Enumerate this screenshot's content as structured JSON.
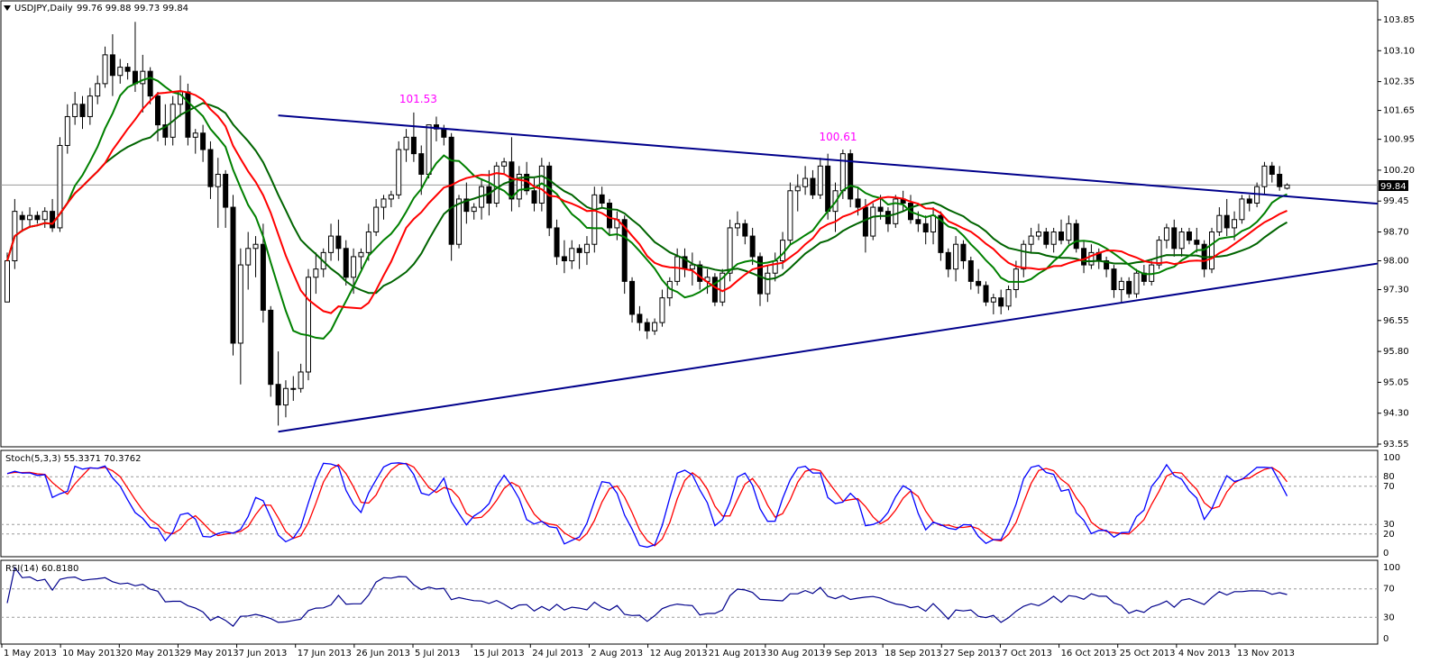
{
  "colors": {
    "background": "#ffffff",
    "candle": "#000000",
    "ma_fast": "#ff0000",
    "ma_mid": "#008000",
    "ma_slow": "#006400",
    "ma_flat": "#ffff00",
    "trendline": "#00008b",
    "annotation": "#ff00ff",
    "stoch_main": "#0000ff",
    "stoch_signal": "#ff0000",
    "rsi": "#00008b",
    "level_line": "#999999",
    "current_price_bg": "#000000",
    "current_price_text": "#ffffff"
  },
  "header": {
    "symbol_icon": "triangle-down-icon",
    "title": "USDJPY,Daily",
    "ohlc": "99.76 99.88 99.73 99.84"
  },
  "price_axis": [
    "103.85",
    "103.10",
    "102.35",
    "101.65",
    "100.95",
    "100.20",
    "99.45",
    "98.70",
    "98.00",
    "97.30",
    "96.55",
    "95.80",
    "95.05",
    "94.30",
    "93.55"
  ],
  "current_price": "99.84",
  "annotations": [
    "101.53",
    "100.61"
  ],
  "stoch": {
    "title": "Stoch(5,3,3) 55.3371 70.3762",
    "axis": [
      "100",
      "80",
      "70",
      "30",
      "20",
      "0"
    ]
  },
  "rsi": {
    "title": "RSI(14) 60.8180",
    "axis": [
      "100",
      "70",
      "30",
      "0"
    ]
  },
  "date_axis": [
    "1 May 2013",
    "10 May 2013",
    "20 May 2013",
    "29 May 2013",
    "7 Jun 2013",
    "17 Jun 2013",
    "26 Jun 2013",
    "5 Jul 2013",
    "15 Jul 2013",
    "24 Jul 2013",
    "2 Aug 2013",
    "12 Aug 2013",
    "21 Aug 2013",
    "30 Aug 2013",
    "9 Sep 2013",
    "18 Sep 2013",
    "27 Sep 2013",
    "7 Oct 2013",
    "16 Oct 2013",
    "25 Oct 2013",
    "4 Nov 2013",
    "13 Nov 2013"
  ],
  "chart_data": {
    "type": "candlestick",
    "symbol": "USDJPY",
    "timeframe": "Daily",
    "ylim": [
      93.55,
      103.85
    ],
    "candles": [
      [
        97.0,
        98.2,
        97.0,
        98.0
      ],
      [
        98.0,
        99.5,
        97.8,
        99.2
      ],
      [
        99.1,
        99.2,
        98.7,
        99.0
      ],
      [
        99.0,
        99.3,
        98.8,
        99.1
      ],
      [
        99.1,
        99.2,
        98.9,
        99.0
      ],
      [
        99.0,
        99.3,
        98.8,
        99.2
      ],
      [
        99.2,
        99.5,
        98.7,
        98.8
      ],
      [
        98.8,
        101.0,
        98.7,
        100.8
      ],
      [
        100.8,
        101.8,
        100.6,
        101.5
      ],
      [
        101.5,
        102.1,
        101.3,
        101.8
      ],
      [
        101.8,
        102.0,
        101.2,
        101.5
      ],
      [
        101.5,
        102.2,
        101.3,
        102.0
      ],
      [
        102.0,
        102.5,
        101.8,
        102.3
      ],
      [
        102.3,
        103.2,
        102.2,
        103.0
      ],
      [
        103.0,
        103.5,
        102.0,
        102.5
      ],
      [
        102.5,
        102.9,
        102.3,
        102.7
      ],
      [
        102.7,
        102.8,
        102.4,
        102.6
      ],
      [
        102.6,
        103.8,
        102.1,
        102.3
      ],
      [
        102.3,
        103.0,
        101.6,
        102.6
      ],
      [
        102.6,
        102.7,
        101.8,
        102.0
      ],
      [
        102.0,
        102.1,
        100.9,
        101.3
      ],
      [
        101.3,
        101.8,
        100.8,
        101.0
      ],
      [
        101.0,
        102.0,
        100.8,
        101.8
      ],
      [
        101.8,
        102.5,
        101.5,
        102.1
      ],
      [
        102.1,
        102.3,
        100.8,
        101.0
      ],
      [
        101.0,
        101.2,
        100.6,
        101.1
      ],
      [
        101.1,
        101.3,
        100.4,
        100.7
      ],
      [
        100.7,
        100.9,
        99.5,
        99.8
      ],
      [
        99.8,
        100.5,
        98.8,
        100.1
      ],
      [
        100.1,
        100.2,
        98.8,
        99.3
      ],
      [
        99.3,
        99.6,
        95.7,
        96.0
      ],
      [
        96.0,
        98.3,
        95.0,
        97.9
      ],
      [
        97.9,
        98.7,
        97.3,
        98.3
      ],
      [
        98.3,
        98.6,
        97.6,
        98.4
      ],
      [
        98.4,
        98.9,
        96.5,
        96.8
      ],
      [
        96.8,
        96.9,
        94.7,
        95.0
      ],
      [
        95.0,
        95.8,
        94.0,
        94.5
      ],
      [
        94.5,
        95.1,
        94.2,
        94.9
      ],
      [
        94.9,
        95.2,
        94.6,
        94.9
      ],
      [
        94.9,
        95.5,
        94.8,
        95.3
      ],
      [
        95.3,
        97.8,
        95.1,
        97.6
      ],
      [
        97.6,
        98.2,
        97.2,
        97.8
      ],
      [
        97.8,
        98.3,
        97.6,
        98.2
      ],
      [
        98.2,
        98.9,
        98.0,
        98.6
      ],
      [
        98.6,
        99.0,
        98.0,
        98.3
      ],
      [
        98.3,
        98.5,
        97.4,
        97.6
      ],
      [
        97.6,
        98.3,
        97.2,
        98.1
      ],
      [
        98.1,
        98.3,
        97.8,
        98.2
      ],
      [
        98.2,
        98.9,
        98.0,
        98.7
      ],
      [
        98.7,
        99.5,
        98.6,
        99.3
      ],
      [
        99.3,
        99.6,
        99.0,
        99.5
      ],
      [
        99.5,
        99.7,
        99.3,
        99.6
      ],
      [
        99.6,
        100.9,
        99.5,
        100.7
      ],
      [
        100.7,
        101.2,
        100.4,
        101.0
      ],
      [
        101.0,
        101.6,
        100.4,
        100.6
      ],
      [
        100.6,
        100.8,
        99.6,
        100.1
      ],
      [
        100.1,
        101.3,
        100.0,
        101.3
      ],
      [
        101.3,
        101.5,
        100.9,
        101.2
      ],
      [
        101.2,
        101.3,
        100.8,
        101.0
      ],
      [
        101.0,
        101.1,
        98.0,
        98.4
      ],
      [
        98.4,
        99.6,
        98.3,
        99.5
      ],
      [
        99.5,
        99.9,
        98.9,
        99.2
      ],
      [
        99.2,
        99.4,
        99.0,
        99.3
      ],
      [
        99.3,
        100.0,
        99.0,
        99.8
      ],
      [
        99.8,
        100.2,
        99.1,
        99.4
      ],
      [
        99.4,
        100.4,
        99.3,
        100.3
      ],
      [
        100.3,
        100.5,
        100.1,
        100.4
      ],
      [
        100.4,
        101.0,
        99.2,
        99.5
      ],
      [
        99.5,
        100.3,
        99.3,
        100.1
      ],
      [
        100.1,
        100.4,
        99.6,
        99.7
      ],
      [
        99.7,
        100.0,
        99.2,
        99.4
      ],
      [
        99.4,
        100.5,
        99.2,
        100.3
      ],
      [
        100.3,
        100.4,
        98.6,
        98.8
      ],
      [
        98.8,
        99.0,
        97.9,
        98.1
      ],
      [
        98.1,
        98.5,
        97.7,
        98.0
      ],
      [
        98.0,
        98.5,
        97.8,
        98.3
      ],
      [
        98.3,
        98.4,
        97.8,
        98.2
      ],
      [
        98.2,
        98.6,
        97.9,
        98.4
      ],
      [
        98.4,
        99.8,
        98.2,
        99.6
      ],
      [
        99.6,
        99.8,
        99.3,
        99.4
      ],
      [
        99.4,
        99.5,
        98.6,
        98.8
      ],
      [
        98.8,
        99.2,
        98.5,
        99.0
      ],
      [
        99.0,
        99.1,
        97.2,
        97.5
      ],
      [
        97.5,
        97.6,
        96.5,
        96.7
      ],
      [
        96.7,
        96.9,
        96.3,
        96.5
      ],
      [
        96.5,
        96.6,
        96.1,
        96.3
      ],
      [
        96.3,
        96.6,
        96.2,
        96.5
      ],
      [
        96.5,
        97.3,
        96.4,
        97.1
      ],
      [
        97.1,
        97.6,
        96.9,
        97.5
      ],
      [
        97.5,
        98.3,
        97.4,
        98.1
      ],
      [
        98.1,
        98.3,
        97.6,
        97.8
      ],
      [
        97.8,
        98.2,
        97.4,
        97.9
      ],
      [
        97.9,
        98.0,
        97.3,
        97.5
      ],
      [
        97.5,
        97.8,
        97.2,
        97.6
      ],
      [
        97.6,
        97.7,
        96.9,
        97.0
      ],
      [
        97.0,
        97.8,
        96.9,
        97.7
      ],
      [
        97.7,
        99.0,
        97.5,
        98.8
      ],
      [
        98.8,
        99.2,
        98.6,
        98.9
      ],
      [
        98.9,
        99.0,
        98.4,
        98.6
      ],
      [
        98.6,
        98.8,
        97.9,
        98.1
      ],
      [
        98.1,
        98.2,
        96.9,
        97.2
      ],
      [
        97.2,
        97.9,
        97.0,
        97.7
      ],
      [
        97.7,
        98.2,
        97.5,
        98.0
      ],
      [
        98.0,
        98.7,
        97.8,
        98.5
      ],
      [
        98.5,
        99.9,
        98.4,
        99.7
      ],
      [
        99.7,
        100.1,
        99.2,
        99.8
      ],
      [
        99.8,
        100.3,
        99.6,
        100.0
      ],
      [
        100.0,
        100.2,
        99.5,
        99.6
      ],
      [
        99.6,
        100.5,
        99.5,
        100.3
      ],
      [
        100.3,
        100.6,
        99.0,
        99.2
      ],
      [
        99.2,
        99.9,
        98.7,
        99.7
      ],
      [
        99.7,
        100.7,
        99.5,
        100.6
      ],
      [
        100.6,
        100.7,
        99.3,
        99.5
      ],
      [
        99.5,
        99.8,
        99.1,
        99.3
      ],
      [
        99.3,
        99.5,
        98.2,
        98.6
      ],
      [
        98.6,
        99.4,
        98.5,
        99.3
      ],
      [
        99.3,
        99.6,
        99.0,
        99.2
      ],
      [
        99.2,
        99.3,
        98.7,
        98.9
      ],
      [
        98.9,
        99.6,
        98.8,
        99.5
      ],
      [
        99.5,
        99.7,
        99.2,
        99.4
      ],
      [
        99.4,
        99.6,
        98.9,
        99.0
      ],
      [
        99.0,
        99.2,
        98.7,
        98.9
      ],
      [
        98.9,
        99.1,
        98.4,
        98.7
      ],
      [
        98.7,
        99.3,
        98.4,
        99.1
      ],
      [
        99.1,
        99.2,
        98.0,
        98.2
      ],
      [
        98.2,
        98.3,
        97.6,
        97.8
      ],
      [
        97.8,
        98.6,
        97.5,
        98.4
      ],
      [
        98.4,
        98.5,
        97.8,
        98.0
      ],
      [
        98.0,
        98.1,
        97.3,
        97.5
      ],
      [
        97.5,
        97.8,
        97.2,
        97.4
      ],
      [
        97.4,
        97.5,
        96.9,
        97.0
      ],
      [
        97.0,
        97.2,
        96.7,
        97.1
      ],
      [
        97.1,
        97.3,
        96.7,
        96.9
      ],
      [
        96.9,
        97.4,
        96.8,
        97.3
      ],
      [
        97.3,
        98.0,
        97.1,
        97.8
      ],
      [
        97.8,
        98.5,
        97.6,
        98.4
      ],
      [
        98.4,
        98.8,
        98.2,
        98.6
      ],
      [
        98.6,
        98.9,
        98.5,
        98.7
      ],
      [
        98.7,
        98.8,
        98.3,
        98.4
      ],
      [
        98.4,
        98.8,
        98.2,
        98.7
      ],
      [
        98.7,
        99.0,
        98.4,
        98.5
      ],
      [
        98.5,
        99.1,
        98.4,
        98.9
      ],
      [
        98.9,
        99.0,
        98.2,
        98.3
      ],
      [
        98.3,
        98.5,
        97.7,
        97.9
      ],
      [
        97.9,
        98.4,
        97.8,
        98.2
      ],
      [
        98.2,
        98.3,
        97.8,
        98.0
      ],
      [
        98.0,
        98.1,
        97.6,
        97.8
      ],
      [
        97.8,
        97.9,
        97.1,
        97.3
      ],
      [
        97.3,
        97.6,
        97.0,
        97.5
      ],
      [
        97.5,
        97.6,
        97.1,
        97.2
      ],
      [
        97.2,
        97.8,
        97.1,
        97.7
      ],
      [
        97.7,
        97.9,
        97.4,
        97.5
      ],
      [
        97.5,
        98.0,
        97.4,
        97.9
      ],
      [
        97.9,
        98.6,
        97.8,
        98.5
      ],
      [
        98.5,
        98.9,
        98.3,
        98.8
      ],
      [
        98.8,
        99.0,
        98.1,
        98.3
      ],
      [
        98.3,
        98.8,
        98.1,
        98.7
      ],
      [
        98.7,
        98.8,
        98.4,
        98.5
      ],
      [
        98.5,
        98.8,
        98.2,
        98.4
      ],
      [
        98.4,
        98.5,
        97.6,
        97.8
      ],
      [
        97.8,
        98.8,
        97.7,
        98.7
      ],
      [
        98.7,
        99.3,
        98.6,
        99.1
      ],
      [
        99.1,
        99.5,
        98.6,
        98.8
      ],
      [
        98.8,
        99.2,
        98.5,
        99.0
      ],
      [
        99.0,
        99.6,
        98.9,
        99.5
      ],
      [
        99.5,
        99.6,
        99.2,
        99.4
      ],
      [
        99.4,
        99.9,
        99.3,
        99.8
      ],
      [
        99.8,
        100.4,
        99.6,
        100.3
      ],
      [
        100.3,
        100.4,
        99.9,
        100.1
      ],
      [
        100.1,
        100.3,
        99.7,
        99.8
      ],
      [
        99.76,
        99.88,
        99.73,
        99.84
      ]
    ],
    "trendlines": [
      {
        "from": [
          36,
          101.53
        ],
        "to": [
          188,
          99.3
        ],
        "color": "#00008b"
      },
      {
        "from": [
          36,
          93.85
        ],
        "to": [
          188,
          98.1
        ],
        "color": "#00008b"
      }
    ],
    "price_labels": [
      {
        "x": 54,
        "y": 101.53,
        "text": "101.53"
      },
      {
        "x": 110,
        "y": 100.61,
        "text": "100.61"
      }
    ],
    "current_price": 99.84,
    "indicators": [
      {
        "name": "Stoch(5,3,3)",
        "main": 55.3371,
        "signal": 70.3762,
        "levels": [
          20,
          30,
          70,
          80
        ],
        "ylim": [
          0,
          100
        ]
      },
      {
        "name": "RSI(14)",
        "value": 60.818,
        "levels": [
          30,
          70
        ],
        "ylim": [
          0,
          100
        ]
      }
    ]
  }
}
